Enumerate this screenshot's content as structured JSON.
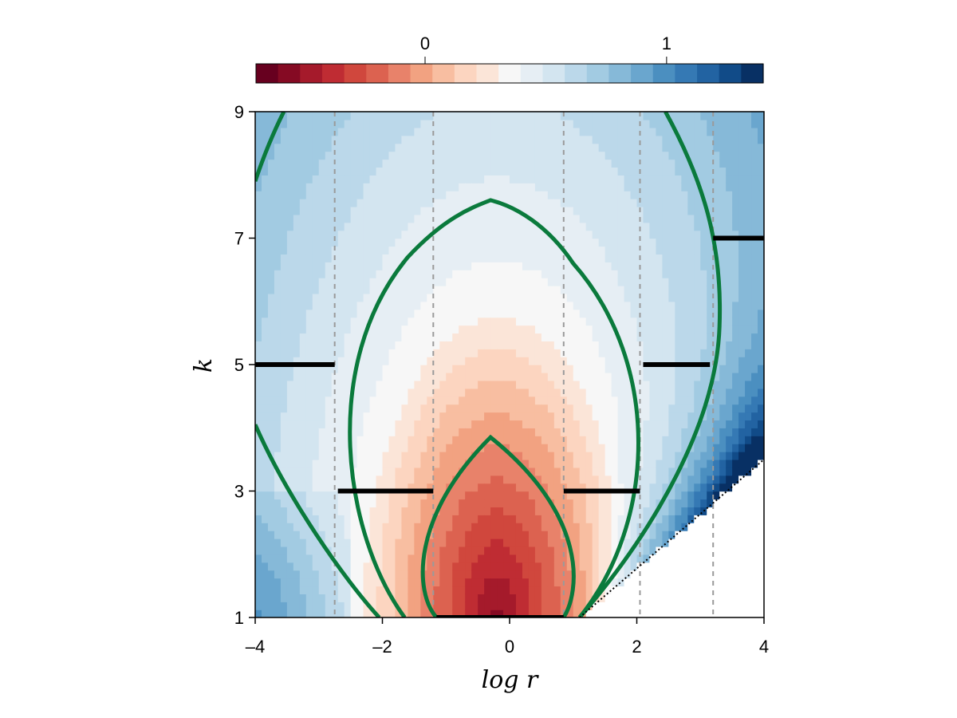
{
  "chart_data": {
    "type": "heatmap",
    "title": "",
    "xlabel": "log r",
    "ylabel": "k",
    "xlim": [
      -4,
      4
    ],
    "ylim": [
      1,
      9
    ],
    "x_ticks": [
      -4,
      -2,
      0,
      2,
      4
    ],
    "x_tick_labels": [
      "–4",
      "–2",
      "0",
      "2",
      "4"
    ],
    "y_ticks": [
      1,
      3,
      5,
      7,
      9
    ],
    "y_tick_labels": [
      "1",
      "3",
      "5",
      "7",
      "9"
    ],
    "grid": false,
    "colorbar": {
      "placement": "top",
      "colormap": "RdBu",
      "range": [
        -0.7,
        1.4
      ],
      "ticks": [
        0,
        1
      ],
      "tick_labels": [
        "0",
        "1"
      ],
      "levels": [
        "#67001f",
        "#850a23",
        "#a51a2b",
        "#bf2c33",
        "#d0473d",
        "#dc6250",
        "#e8826a",
        "#f2a281",
        "#f8bea1",
        "#fcd5c0",
        "#fbe5d8",
        "#f7f7f7",
        "#e6eef4",
        "#d3e5f0",
        "#bbd8ea",
        "#a2cbe2",
        "#86b9d8",
        "#6aa6ce",
        "#4b8fc0",
        "#3579b4",
        "#2263a2",
        "#114b88",
        "#083064"
      ]
    },
    "heatmap_model": {
      "center": [
        -0.2,
        1.0
      ],
      "base_value": -0.7,
      "radial_scale_x": 2.2,
      "radial_scale_y": 5.0,
      "value_offset": 0.15,
      "right_wing_strength": 0.95,
      "boundary_line": {
        "style": "dotted",
        "points": [
          [
            1.1,
            1.0
          ],
          [
            4.0,
            3.5
          ]
        ]
      }
    },
    "contours": {
      "color": "#0a7a3c",
      "curves": [
        {
          "name_hint": "inner",
          "top": [
            -0.3,
            3.85
          ],
          "bottom_left": [
            -1.15,
            1.0
          ],
          "bottom_right": [
            0.85,
            1.0
          ],
          "max_width_y": 2.1,
          "left_x": -1.45,
          "right_x": 1.1
        },
        {
          "name_hint": "middle",
          "top": [
            -0.3,
            7.6
          ],
          "left_x": -2.9,
          "right_x": 2.2,
          "widest_y": 4.0,
          "bottom_left": [
            -1.65,
            1.0
          ],
          "bottom_right": [
            1.1,
            1.0
          ]
        },
        {
          "name_hint": "outer",
          "top_left": [
            -4.0,
            7.9
          ],
          "upper_left": [
            -3.55,
            9.0
          ],
          "bottom_left": [
            -2.05,
            1.0
          ],
          "upper_right": [
            2.45,
            9.0
          ],
          "right_x": 3.3,
          "widest_y": 6.0,
          "bottom_right": [
            1.1,
            1.0
          ],
          "left_entry": [
            -4.0,
            4.05
          ]
        }
      ]
    },
    "segments": [
      {
        "y": 1,
        "x": [
          -1.15,
          0.85
        ]
      },
      {
        "y": 3,
        "x": [
          -2.7,
          -1.2
        ]
      },
      {
        "y": 3,
        "x": [
          0.85,
          2.05
        ]
      },
      {
        "y": 5,
        "x": [
          -4.0,
          -2.75
        ]
      },
      {
        "y": 5,
        "x": [
          2.1,
          3.15
        ]
      },
      {
        "y": 7,
        "x": [
          3.2,
          4.0
        ]
      }
    ],
    "vlines": [
      -2.75,
      -1.2,
      0.85,
      2.05,
      3.2
    ]
  }
}
